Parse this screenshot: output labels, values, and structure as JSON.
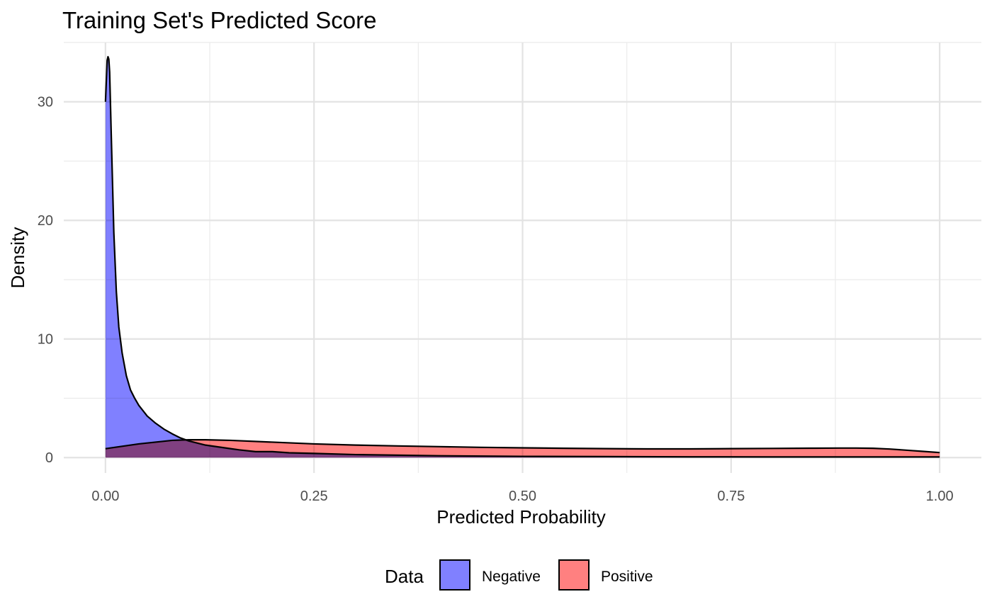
{
  "chart_data": {
    "type": "area",
    "title": "Training Set's Predicted Score",
    "xlabel": "Predicted Probability",
    "ylabel": "Density",
    "xlim": [
      -0.05,
      1.05
    ],
    "ylim": [
      -1.3,
      35
    ],
    "x_ticks": [
      0,
      0.25,
      0.5,
      0.75,
      1.0
    ],
    "x_tick_labels": [
      "0.00",
      "0.25",
      "0.50",
      "0.75",
      "1.00"
    ],
    "x_minor_ticks": [
      0.125,
      0.375,
      0.625,
      0.875
    ],
    "y_ticks": [
      0,
      10,
      20,
      30
    ],
    "y_tick_labels": [
      "0",
      "10",
      "20",
      "30"
    ],
    "y_minor_ticks": [
      5,
      15,
      25,
      35
    ],
    "grid": true,
    "legend": {
      "title": "Data",
      "position": "bottom"
    },
    "series": [
      {
        "name": "Negative",
        "color": "#8080ff",
        "x": [
          0,
          0.002,
          0.003,
          0.004,
          0.005,
          0.007,
          0.01,
          0.013,
          0.016,
          0.02,
          0.025,
          0.03,
          0.035,
          0.04,
          0.05,
          0.06,
          0.07,
          0.08,
          0.09,
          0.1,
          0.12,
          0.14,
          0.16,
          0.18,
          0.2,
          0.22,
          0.25,
          0.3,
          0.4,
          0.5,
          0.6,
          0.7,
          0.8,
          0.9,
          1.0
        ],
        "y": [
          30,
          33.5,
          33.8,
          33.6,
          32.5,
          27,
          19,
          14,
          11,
          8.8,
          6.9,
          5.7,
          5.0,
          4.4,
          3.5,
          2.9,
          2.4,
          2.0,
          1.65,
          1.4,
          1.05,
          0.85,
          0.65,
          0.5,
          0.5,
          0.4,
          0.35,
          0.25,
          0.15,
          0.1,
          0.08,
          0.06,
          0.05,
          0.05,
          0.05
        ]
      },
      {
        "name": "Positive",
        "color": "#ff8080",
        "x": [
          0,
          0.02,
          0.04,
          0.06,
          0.08,
          0.1,
          0.12,
          0.15,
          0.2,
          0.25,
          0.3,
          0.35,
          0.4,
          0.45,
          0.5,
          0.55,
          0.6,
          0.65,
          0.7,
          0.75,
          0.8,
          0.85,
          0.88,
          0.9,
          0.92,
          0.94,
          0.96,
          0.98,
          1.0
        ],
        "y": [
          0.75,
          0.95,
          1.15,
          1.3,
          1.45,
          1.5,
          1.5,
          1.45,
          1.3,
          1.15,
          1.05,
          0.98,
          0.92,
          0.86,
          0.82,
          0.78,
          0.75,
          0.73,
          0.73,
          0.75,
          0.77,
          0.79,
          0.8,
          0.8,
          0.78,
          0.72,
          0.62,
          0.52,
          0.42
        ]
      }
    ]
  }
}
